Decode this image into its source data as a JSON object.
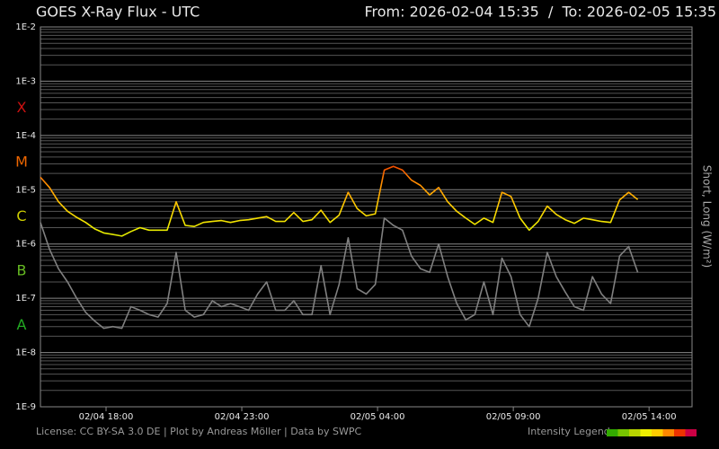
{
  "chart_data": {
    "type": "line",
    "title": "GOES X-Ray Flux - UTC",
    "range_label": "From: 2026-02-04 15:35  /  To: 2026-02-05 15:35",
    "y_label": "Short, Long (W/m²)",
    "footer": "License: CC BY-SA 3.0 DE | Plot by Andreas Möller | Data by SWPC",
    "intensity_legend": {
      "label": "Intensity Legend",
      "colors": [
        "#33aa00",
        "#77c400",
        "#b8d400",
        "#eeee00",
        "#ffcc00",
        "#ff8800",
        "#ee3300",
        "#cc0044"
      ]
    },
    "flare_classes": [
      {
        "label": "A",
        "min": 1e-08,
        "color": "#22aa22"
      },
      {
        "label": "B",
        "min": 1e-07,
        "color": "#66bb22"
      },
      {
        "label": "C",
        "min": 1e-06,
        "color": "#cccc00"
      },
      {
        "label": "M",
        "min": 1e-05,
        "color": "#ee6600"
      },
      {
        "label": "X",
        "min": 0.0001,
        "color": "#cc1111"
      }
    ],
    "log_scale": true,
    "grid": true,
    "minor_grid": true,
    "xlim": [
      "2026-02-04 15:35",
      "2026-02-05 15:35"
    ],
    "xticks": [
      {
        "value": "2026-02-04 18:00",
        "label": "02/04 18:00"
      },
      {
        "value": "2026-02-04 23:00",
        "label": "02/04 23:00"
      },
      {
        "value": "2026-02-05 04:00",
        "label": "02/05 04:00"
      },
      {
        "value": "2026-02-05 09:00",
        "label": "02/05 09:00"
      },
      {
        "value": "2026-02-05 14:00",
        "label": "02/05 14:00"
      }
    ],
    "ylim": [
      1e-09,
      0.01
    ],
    "yticks": [
      {
        "value": 1e-09,
        "label": "1E-9"
      },
      {
        "value": 1e-08,
        "label": "1E-8"
      },
      {
        "value": 1e-07,
        "label": "1E-7"
      },
      {
        "value": 1e-06,
        "label": "1E-6"
      },
      {
        "value": 1e-05,
        "label": "1E-5"
      },
      {
        "value": 0.0001,
        "label": "1E-4"
      },
      {
        "value": 0.001,
        "label": "1E-3"
      },
      {
        "value": 0.01,
        "label": "1E-2"
      }
    ],
    "x": [
      "2026-02-04 15:35",
      "2026-02-04 15:55",
      "2026-02-04 16:15",
      "2026-02-04 16:35",
      "2026-02-04 16:55",
      "2026-02-04 17:15",
      "2026-02-04 17:35",
      "2026-02-04 17:55",
      "2026-02-04 18:15",
      "2026-02-04 18:35",
      "2026-02-04 18:55",
      "2026-02-04 19:15",
      "2026-02-04 19:35",
      "2026-02-04 19:55",
      "2026-02-04 20:15",
      "2026-02-04 20:35",
      "2026-02-04 20:55",
      "2026-02-04 21:15",
      "2026-02-04 21:35",
      "2026-02-04 21:55",
      "2026-02-04 22:15",
      "2026-02-04 22:35",
      "2026-02-04 22:55",
      "2026-02-04 23:15",
      "2026-02-04 23:35",
      "2026-02-04 23:55",
      "2026-02-05 00:15",
      "2026-02-05 00:35",
      "2026-02-05 00:55",
      "2026-02-05 01:15",
      "2026-02-05 01:35",
      "2026-02-05 01:55",
      "2026-02-05 02:15",
      "2026-02-05 02:35",
      "2026-02-05 02:55",
      "2026-02-05 03:15",
      "2026-02-05 03:35",
      "2026-02-05 03:55",
      "2026-02-05 04:15",
      "2026-02-05 04:35",
      "2026-02-05 04:55",
      "2026-02-05 05:15",
      "2026-02-05 05:35",
      "2026-02-05 05:55",
      "2026-02-05 06:15",
      "2026-02-05 06:35",
      "2026-02-05 06:55",
      "2026-02-05 07:15",
      "2026-02-05 07:35",
      "2026-02-05 07:55",
      "2026-02-05 08:15",
      "2026-02-05 08:35",
      "2026-02-05 08:55",
      "2026-02-05 09:15",
      "2026-02-05 09:35",
      "2026-02-05 09:55",
      "2026-02-05 10:15",
      "2026-02-05 10:35",
      "2026-02-05 10:55",
      "2026-02-05 11:15",
      "2026-02-05 11:35",
      "2026-02-05 11:55",
      "2026-02-05 12:15",
      "2026-02-05 12:35",
      "2026-02-05 12:55",
      "2026-02-05 13:15",
      "2026-02-05 13:35"
    ],
    "series": [
      {
        "name": "Short",
        "color": "#808080",
        "values": [
          2.5e-06,
          8e-07,
          3.5e-07,
          2e-07,
          1e-07,
          5.5e-08,
          3.8e-08,
          2.8e-08,
          3e-08,
          2.8e-08,
          7e-08,
          6e-08,
          5e-08,
          4.5e-08,
          8e-08,
          7e-07,
          6e-08,
          4.5e-08,
          5e-08,
          9e-08,
          7e-08,
          8e-08,
          7e-08,
          6e-08,
          1.2e-07,
          2e-07,
          6e-08,
          6e-08,
          9e-08,
          5e-08,
          5e-08,
          4e-07,
          5e-08,
          1.8e-07,
          1.3e-06,
          1.5e-07,
          1.2e-07,
          1.8e-07,
          3e-06,
          2.2e-06,
          1.8e-06,
          6e-07,
          3.5e-07,
          3e-07,
          1e-06,
          2.5e-07,
          8e-08,
          4e-08,
          5e-08,
          2e-07,
          5e-08,
          5.5e-07,
          2.5e-07,
          5e-08,
          3e-08,
          1e-07,
          7e-07,
          2.5e-07,
          1.3e-07,
          7e-08,
          6e-08,
          2.5e-07,
          1.2e-07,
          8e-08,
          6e-07,
          9e-07,
          3e-07
        ]
      },
      {
        "name": "Long",
        "values": [
          1.7e-05,
          1.1e-05,
          6e-06,
          4e-06,
          3.1e-06,
          2.5e-06,
          1.9e-06,
          1.6e-06,
          1.5e-06,
          1.4e-06,
          1.7e-06,
          2e-06,
          1.8e-06,
          1.8e-06,
          1.8e-06,
          6e-06,
          2.2e-06,
          2.1e-06,
          2.5e-06,
          2.6e-06,
          2.7e-06,
          2.5e-06,
          2.7e-06,
          2.8e-06,
          3e-06,
          3.2e-06,
          2.6e-06,
          2.6e-06,
          3.8e-06,
          2.6e-06,
          2.8e-06,
          4.2e-06,
          2.5e-06,
          3.4e-06,
          9e-06,
          4.5e-06,
          3.3e-06,
          3.6e-06,
          2.3e-05,
          2.7e-05,
          2.3e-05,
          1.5e-05,
          1.2e-05,
          8e-06,
          1.1e-05,
          6e-06,
          4e-06,
          3e-06,
          2.3e-06,
          3e-06,
          2.5e-06,
          9e-06,
          7.5e-06,
          3e-06,
          1.8e-06,
          2.6e-06,
          5e-06,
          3.5e-06,
          2.8e-06,
          2.4e-06,
          3e-06,
          2.8e-06,
          2.6e-06,
          2.5e-06,
          6.5e-06,
          9e-06,
          6.6e-06
        ]
      }
    ]
  }
}
